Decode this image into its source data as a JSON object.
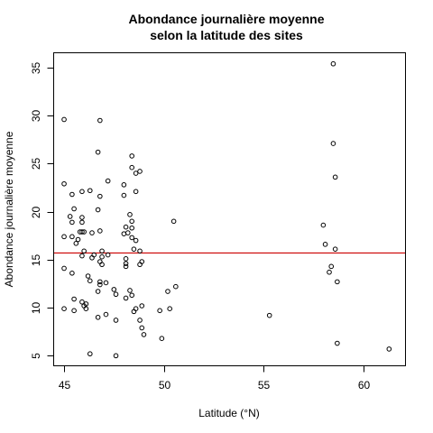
{
  "chart_data": {
    "type": "scatter",
    "title_lines": [
      "Abondance journalière moyenne",
      "selon la latitude des sites"
    ],
    "xlabel": "Latitude (°N)",
    "ylabel": "Abondance journalière moyenne",
    "xlim": [
      44.5,
      62.1
    ],
    "ylim": [
      4.0,
      36.5
    ],
    "xticks": [
      45,
      50,
      55,
      60
    ],
    "yticks": [
      5,
      10,
      15,
      20,
      25,
      30,
      35
    ],
    "grid": false,
    "legend": "none",
    "point_style": "open circle",
    "point_color": "#000000",
    "hline": {
      "y": 15.7,
      "color": "#cc0000"
    },
    "points": [
      [
        45.0,
        29.6
      ],
      [
        45.0,
        22.9
      ],
      [
        45.0,
        17.4
      ],
      [
        45.0,
        14.1
      ],
      [
        45.0,
        9.9
      ],
      [
        45.3,
        19.5
      ],
      [
        45.4,
        21.8
      ],
      [
        45.4,
        18.9
      ],
      [
        45.4,
        17.4
      ],
      [
        45.5,
        20.3
      ],
      [
        45.4,
        13.6
      ],
      [
        45.5,
        10.9
      ],
      [
        45.5,
        9.7
      ],
      [
        45.6,
        16.7
      ],
      [
        45.7,
        17.1
      ],
      [
        45.8,
        17.9
      ],
      [
        45.9,
        22.1
      ],
      [
        45.9,
        19.4
      ],
      [
        45.9,
        17.9
      ],
      [
        45.9,
        18.9
      ],
      [
        46.0,
        17.9
      ],
      [
        46.0,
        15.9
      ],
      [
        45.9,
        15.4
      ],
      [
        45.9,
        10.6
      ],
      [
        46.0,
        10.2
      ],
      [
        46.1,
        10.4
      ],
      [
        46.1,
        9.9
      ],
      [
        46.2,
        13.3
      ],
      [
        46.3,
        22.2
      ],
      [
        46.3,
        12.8
      ],
      [
        46.4,
        17.8
      ],
      [
        46.4,
        15.2
      ],
      [
        46.3,
        5.2
      ],
      [
        46.5,
        15.5
      ],
      [
        46.7,
        26.2
      ],
      [
        46.8,
        29.5
      ],
      [
        46.7,
        20.2
      ],
      [
        46.8,
        21.6
      ],
      [
        46.8,
        18.0
      ],
      [
        46.9,
        15.9
      ],
      [
        46.9,
        15.3
      ],
      [
        46.8,
        14.8
      ],
      [
        46.9,
        14.5
      ],
      [
        46.8,
        12.7
      ],
      [
        46.8,
        12.4
      ],
      [
        46.7,
        11.7
      ],
      [
        46.7,
        9.0
      ],
      [
        47.1,
        12.6
      ],
      [
        47.1,
        9.3
      ],
      [
        47.2,
        23.2
      ],
      [
        47.2,
        15.5
      ],
      [
        47.5,
        11.9
      ],
      [
        47.6,
        11.4
      ],
      [
        47.6,
        8.7
      ],
      [
        47.6,
        5.0
      ],
      [
        48.0,
        22.8
      ],
      [
        48.0,
        21.7
      ],
      [
        48.0,
        17.7
      ],
      [
        48.1,
        18.4
      ],
      [
        48.1,
        15.1
      ],
      [
        48.1,
        14.3
      ],
      [
        48.1,
        14.6
      ],
      [
        48.2,
        17.8
      ],
      [
        48.1,
        11.0
      ],
      [
        48.3,
        11.8
      ],
      [
        48.4,
        25.8
      ],
      [
        48.4,
        24.6
      ],
      [
        48.3,
        19.7
      ],
      [
        48.4,
        19.0
      ],
      [
        48.4,
        18.3
      ],
      [
        48.4,
        17.3
      ],
      [
        48.6,
        24.0
      ],
      [
        48.6,
        22.1
      ],
      [
        48.6,
        17.0
      ],
      [
        48.5,
        16.1
      ],
      [
        48.4,
        11.3
      ],
      [
        48.5,
        9.6
      ],
      [
        48.6,
        9.9
      ],
      [
        48.8,
        24.2
      ],
      [
        48.8,
        15.9
      ],
      [
        48.8,
        14.5
      ],
      [
        48.9,
        14.8
      ],
      [
        48.8,
        8.7
      ],
      [
        48.9,
        10.2
      ],
      [
        48.9,
        7.9
      ],
      [
        49.0,
        7.2
      ],
      [
        49.8,
        9.7
      ],
      [
        49.9,
        6.8
      ],
      [
        50.2,
        11.7
      ],
      [
        50.3,
        9.9
      ],
      [
        50.5,
        19.0
      ],
      [
        50.6,
        12.2
      ],
      [
        55.3,
        9.2
      ],
      [
        58.0,
        18.6
      ],
      [
        58.1,
        16.6
      ],
      [
        58.3,
        13.7
      ],
      [
        58.4,
        14.3
      ],
      [
        58.5,
        35.4
      ],
      [
        58.5,
        27.1
      ],
      [
        58.6,
        23.6
      ],
      [
        58.6,
        16.1
      ],
      [
        58.7,
        12.7
      ],
      [
        58.7,
        6.3
      ],
      [
        61.3,
        5.7
      ]
    ]
  }
}
